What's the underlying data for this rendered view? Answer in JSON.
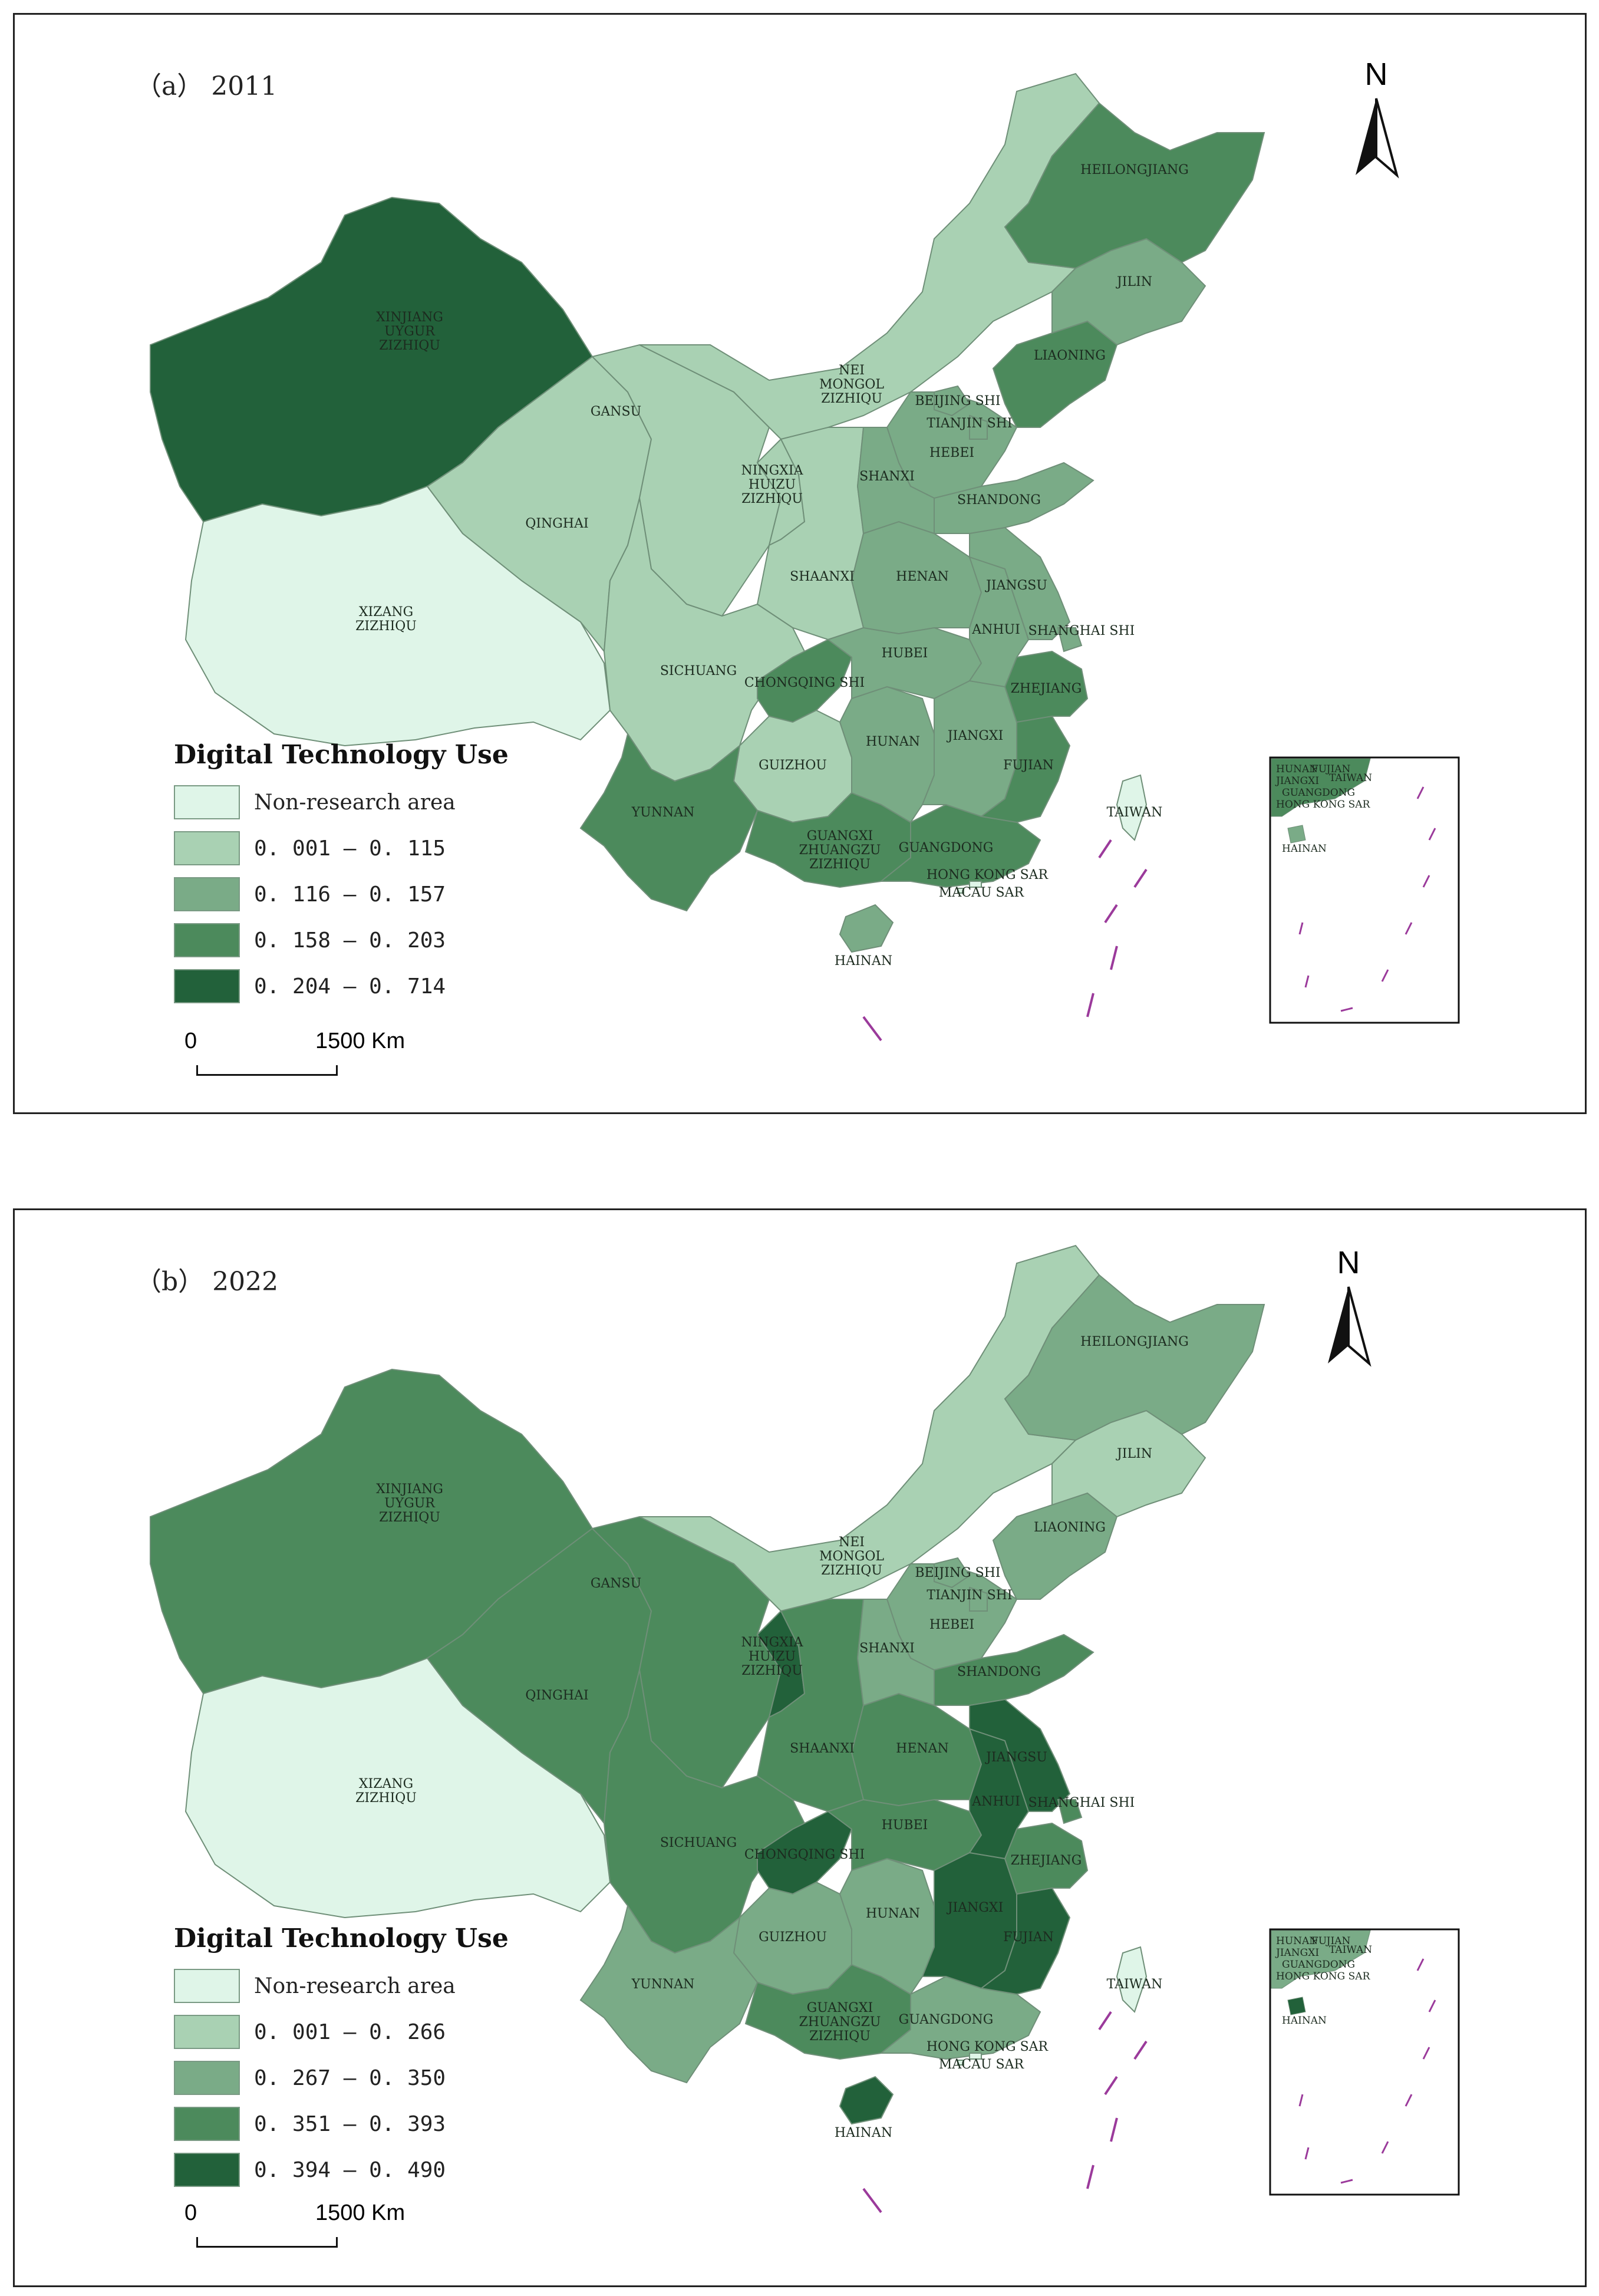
{
  "legend_title": "Digital Technology Use",
  "scale": {
    "zero": "0",
    "distance": "1500 Km"
  },
  "north": "N",
  "colors": {
    "non_research": "#dff5e8",
    "class1": "#a9d1b3",
    "class2": "#7aab87",
    "class3": "#4c8a5c",
    "class4": "#22613a",
    "border": "#6f8f78",
    "boundary": "#9b3a9b"
  },
  "panels": [
    {
      "title": "（a） 2011",
      "legend_items": [
        {
          "label": "Non-research area",
          "color_key": "non_research"
        },
        {
          "label": "0. 001 – 0. 115",
          "color_key": "class1"
        },
        {
          "label": "0. 116 – 0. 157",
          "color_key": "class2"
        },
        {
          "label": "0. 158 – 0. 203",
          "color_key": "class3"
        },
        {
          "label": "0. 204 – 0. 714",
          "color_key": "class4"
        }
      ],
      "provinces": {
        "xinjiang": {
          "label": "XINJIANG UYGUR ZIZHIQU",
          "class": 4
        },
        "xizang": {
          "label": "XIZANG ZIZHIQU",
          "class": 0
        },
        "qinghai": {
          "label": "QINGHAI",
          "class": 1
        },
        "gansu": {
          "label": "GANSU",
          "class": 1
        },
        "nei_mongol": {
          "label": "NEI MONGOL ZIZHIQU",
          "class": 1
        },
        "ningxia": {
          "label": "NINGXIA HUIZU ZIZHIQU",
          "class": 1
        },
        "shaanxi": {
          "label": "SHAANXI",
          "class": 1
        },
        "sichuan": {
          "label": "SICHUANG",
          "class": 1
        },
        "chongqing": {
          "label": "CHONGQING SHI",
          "class": 3
        },
        "guizhou": {
          "label": "GUIZHOU",
          "class": 1
        },
        "yunnan": {
          "label": "YUNNAN",
          "class": 3
        },
        "guangxi": {
          "label": "GUANGXI ZHUANGZU ZIZHIQU",
          "class": 3
        },
        "guangdong": {
          "label": "GUANGDONG",
          "class": 3
        },
        "hainan": {
          "label": "HAINAN",
          "class": 2
        },
        "hunan": {
          "label": "HUNAN",
          "class": 2
        },
        "jiangxi": {
          "label": "JIANGXI",
          "class": 2
        },
        "fujian": {
          "label": "FUJIAN",
          "class": 3
        },
        "zhejiang": {
          "label": "ZHEJIANG",
          "class": 3
        },
        "hubei": {
          "label": "HUBEI",
          "class": 2
        },
        "henan": {
          "label": "HENAN",
          "class": 2
        },
        "anhui": {
          "label": "ANHUI",
          "class": 2
        },
        "jiangsu": {
          "label": "JIANGSU",
          "class": 2
        },
        "shanghai": {
          "label": "SHANGHAI SHI",
          "class": 2
        },
        "shandong": {
          "label": "SHANDONG",
          "class": 2
        },
        "hebei": {
          "label": "HEBEI",
          "class": 2
        },
        "shanxi": {
          "label": "SHANXI",
          "class": 2
        },
        "beijing": {
          "label": "BEIJING SHI",
          "class": 2
        },
        "tianjin": {
          "label": "TIANJIN SHI",
          "class": 2
        },
        "liaoning": {
          "label": "LIAONING",
          "class": 3
        },
        "jilin": {
          "label": "JILIN",
          "class": 2
        },
        "heilongjiang": {
          "label": "HEILONGJIANG",
          "class": 3
        },
        "taiwan": {
          "label": "TAIWAN",
          "class": 0
        },
        "hongkong": {
          "label": "HONG KONG SAR",
          "class": 0
        },
        "macau": {
          "label": "MACAU SAR",
          "class": 0
        }
      }
    },
    {
      "title": "（b） 2022",
      "legend_items": [
        {
          "label": "Non-research area",
          "color_key": "non_research"
        },
        {
          "label": "0. 001 – 0. 266",
          "color_key": "class1"
        },
        {
          "label": "0. 267 – 0. 350",
          "color_key": "class2"
        },
        {
          "label": "0. 351 – 0. 393",
          "color_key": "class3"
        },
        {
          "label": "0. 394 – 0. 490",
          "color_key": "class4"
        }
      ],
      "provinces": {
        "xinjiang": {
          "label": "XINJIANG UYGUR ZIZHIQU",
          "class": 3
        },
        "xizang": {
          "label": "XIZANG ZIZHIQU",
          "class": 0
        },
        "qinghai": {
          "label": "QINGHAI",
          "class": 3
        },
        "gansu": {
          "label": "GANSU",
          "class": 3
        },
        "nei_mongol": {
          "label": "NEI MONGOL ZIZHIQU",
          "class": 1
        },
        "ningxia": {
          "label": "NINGXIA HUIZU ZIZHIQU",
          "class": 4
        },
        "shaanxi": {
          "label": "SHAANXI",
          "class": 3
        },
        "sichuan": {
          "label": "SICHUANG",
          "class": 3
        },
        "chongqing": {
          "label": "CHONGQING SHI",
          "class": 4
        },
        "guizhou": {
          "label": "GUIZHOU",
          "class": 2
        },
        "yunnan": {
          "label": "YUNNAN",
          "class": 2
        },
        "guangxi": {
          "label": "GUANGXI ZHUANGZU ZIZHIQU",
          "class": 3
        },
        "guangdong": {
          "label": "GUANGDONG",
          "class": 2
        },
        "hainan": {
          "label": "HAINAN",
          "class": 4
        },
        "hunan": {
          "label": "HUNAN",
          "class": 2
        },
        "jiangxi": {
          "label": "JIANGXI",
          "class": 4
        },
        "fujian": {
          "label": "FUJIAN",
          "class": 4
        },
        "zhejiang": {
          "label": "ZHEJIANG",
          "class": 3
        },
        "hubei": {
          "label": "HUBEI",
          "class": 3
        },
        "henan": {
          "label": "HENAN",
          "class": 3
        },
        "anhui": {
          "label": "ANHUI",
          "class": 4
        },
        "jiangsu": {
          "label": "JIANGSU",
          "class": 4
        },
        "shanghai": {
          "label": "SHANGHAI SHI",
          "class": 3
        },
        "shandong": {
          "label": "SHANDONG",
          "class": 3
        },
        "hebei": {
          "label": "HEBEI",
          "class": 2
        },
        "shanxi": {
          "label": "SHANXI",
          "class": 2
        },
        "beijing": {
          "label": "BEIJING SHI",
          "class": 2
        },
        "tianjin": {
          "label": "TIANJIN SHI",
          "class": 2
        },
        "liaoning": {
          "label": "LIAONING",
          "class": 2
        },
        "jilin": {
          "label": "JILIN",
          "class": 1
        },
        "heilongjiang": {
          "label": "HEILONGJIANG",
          "class": 2
        },
        "taiwan": {
          "label": "TAIWAN",
          "class": 0
        },
        "hongkong": {
          "label": "HONG KONG SAR",
          "class": 0
        },
        "macau": {
          "label": "MACAU SAR",
          "class": 0
        }
      }
    }
  ]
}
